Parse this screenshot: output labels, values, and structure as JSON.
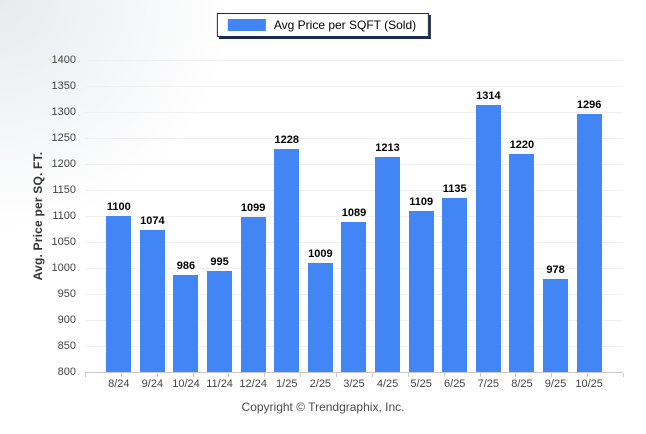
{
  "legend": {
    "label": "Avg Price per SQFT (Sold)"
  },
  "y_axis_title": "Avg. Price per SQ. FT.",
  "footer": {
    "copyright": "Copyright © Trendgraphix, Inc."
  },
  "colors": {
    "bar": "#4285f4",
    "legend_swatch": "#4285f4",
    "legend_border": "#1b2b4e",
    "grid_line": "#f0f0f0",
    "axis_line": "#c9c9c9",
    "tick_text": "#444444",
    "value_label": "#000000"
  },
  "chart_data": {
    "type": "bar",
    "title": "Avg Price per SQFT (Sold)",
    "categories": [
      "8/24",
      "9/24",
      "10/24",
      "11/24",
      "12/24",
      "1/25",
      "2/25",
      "3/25",
      "4/25",
      "5/25",
      "6/25",
      "7/25",
      "8/25",
      "9/25",
      "10/25"
    ],
    "values": [
      1100,
      1074,
      986,
      995,
      1099,
      1228,
      1009,
      1089,
      1213,
      1109,
      1135,
      1314,
      1220,
      978,
      1296
    ],
    "xlabel": "",
    "ylabel": "Avg. Price per SQ. FT.",
    "ylim": [
      800,
      1400
    ],
    "ytick_step": 50,
    "grid": true,
    "legend_position": "top",
    "bar_value_labels": true
  }
}
